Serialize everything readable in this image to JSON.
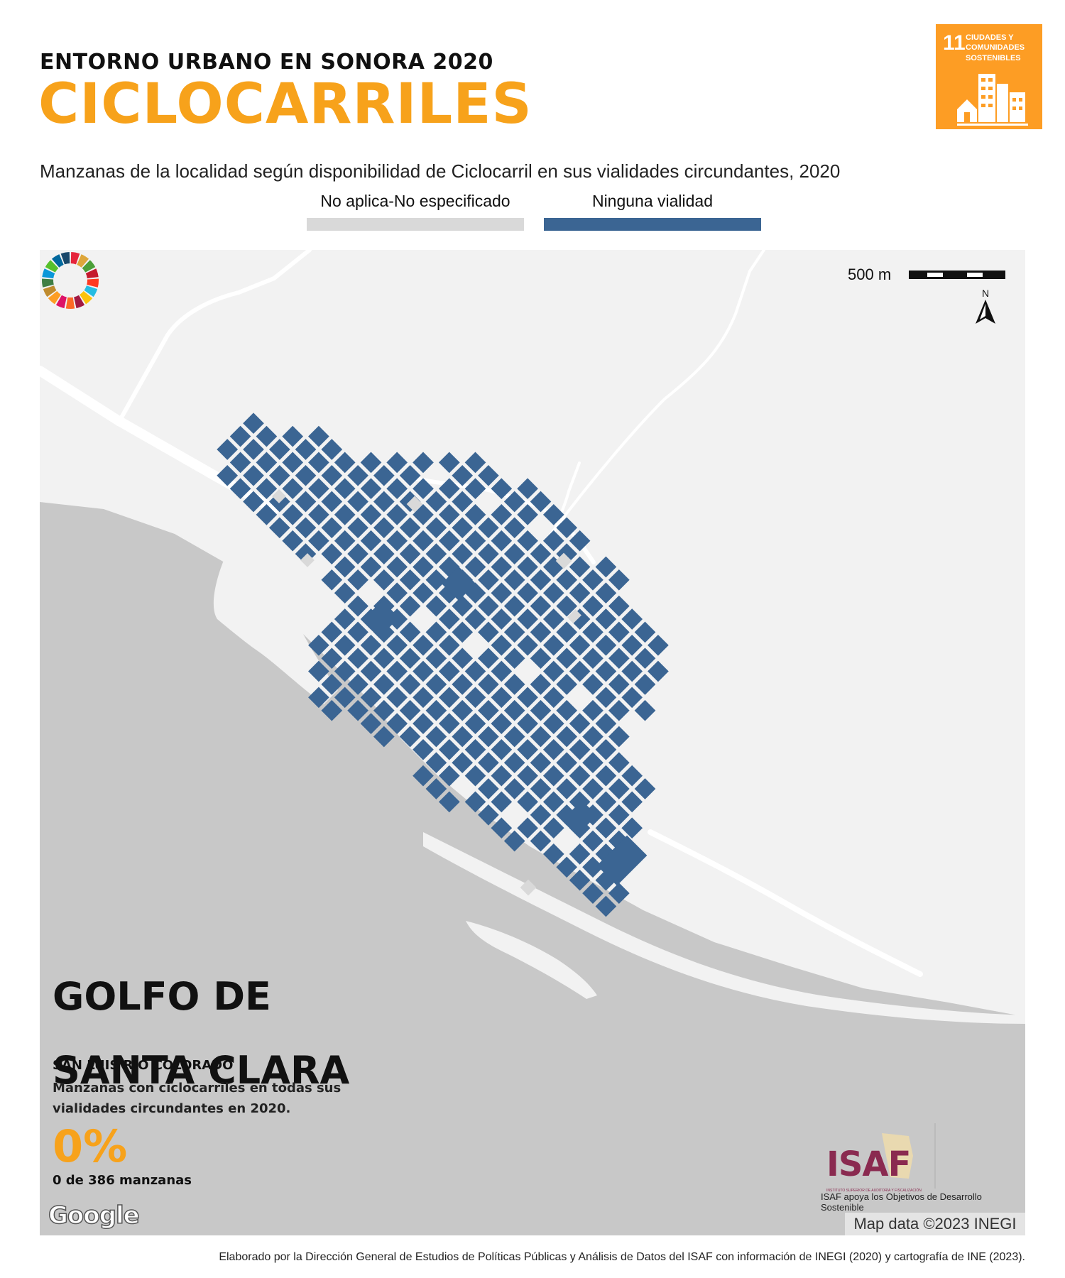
{
  "header": {
    "subtitle": "ENTORNO URBANO EN SONORA 2020",
    "title": "CICLOCARRILES",
    "caption": "Manzanas de la localidad según disponibilidad de Ciclocarril en sus vialidades circundantes, 2020"
  },
  "legend": [
    {
      "label": "No aplica-No especificado",
      "color": "#D9D9D9"
    },
    {
      "label": "Ninguna vialidad",
      "color": "#3B6593"
    }
  ],
  "sdg": {
    "number": "11",
    "text": "CIUDADES Y COMUNIDADES SOSTENIBLES",
    "color": "#FD9D24"
  },
  "map": {
    "scale_label": "500 m",
    "north_label": "N",
    "locality_name": "GOLFO DE SANTA CLARA",
    "municipality": "SAN LUIS RÍO COLORADO",
    "indicator_desc": "Manzanas con ciclocarriles en todas sus vialidades circundantes en 2020.",
    "percentage": "0%",
    "count_text": "0 de 386 manzanas",
    "google_label": "Google",
    "attribution": "Map data ©2023 INEGI",
    "land_color": "#F2F2F2",
    "sea_color": "#C8C8C8",
    "block_color": "#3B6593",
    "na_color": "#D9D9D9"
  },
  "logos": {
    "isaf": "ISAF",
    "isaf_sub": "INSTITUTO SUPERIOR DE AUDITORÍA Y FISCALIZACIÓN",
    "tagline": "ISAF apoya los Objetivos de Desarrollo Sostenible"
  },
  "footer": "Elaborado por la Dirección General de Estudios de Políticas Públicas y Análisis de Datos del ISAF con información de INEGI (2020) y cartografía de INE (2023)."
}
